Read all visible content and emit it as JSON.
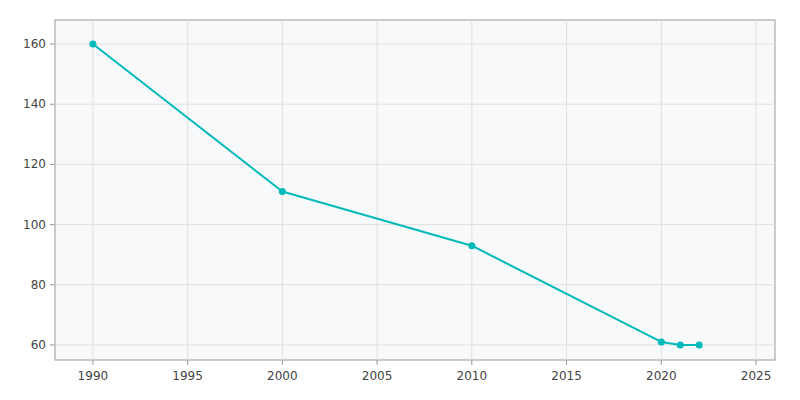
{
  "chart_data": {
    "type": "line",
    "x": [
      1990,
      2000,
      2010,
      2020,
      2021,
      2022
    ],
    "values": [
      160,
      111,
      93,
      61,
      60,
      60
    ],
    "color": "#00BABA",
    "marker": "circle",
    "xlim": [
      1988,
      2026
    ],
    "ylim": [
      55,
      168
    ],
    "xticks": [
      1990,
      1995,
      2000,
      2005,
      2010,
      2015,
      2020,
      2025
    ],
    "yticks": [
      60,
      80,
      100,
      120,
      140,
      160
    ],
    "grid": true
  }
}
